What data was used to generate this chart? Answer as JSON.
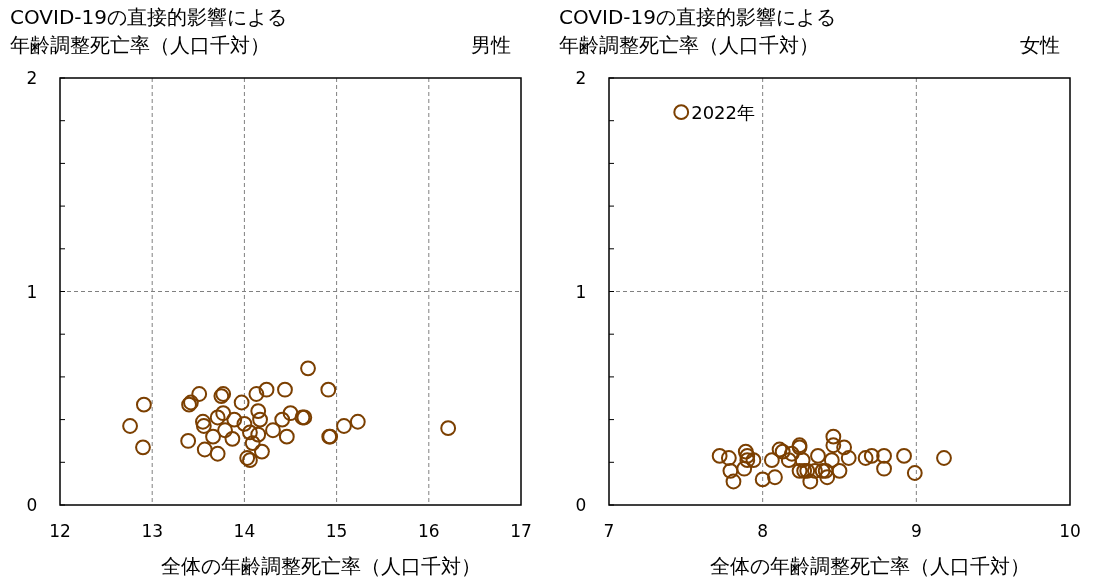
{
  "chart_data": [
    {
      "type": "scatter",
      "title": "男性",
      "ylabel": "COVID-19の直接的影響による年齢調整死亡率（人口千対）",
      "xlabel": "全体の年齢調整死亡率（人口千対）",
      "marker": "circle",
      "grid": true,
      "xlim": [
        12,
        17
      ],
      "xticks": [
        12,
        13,
        14,
        15,
        16,
        17
      ],
      "ylim": [
        0,
        2
      ],
      "yticks": [
        0,
        {
          "value": 0.2,
          "label": null
        },
        {
          "value": 0.4,
          "label": null
        },
        {
          "value": 0.6,
          "label": null
        },
        {
          "value": 0.8,
          "label": null
        },
        1,
        {
          "value": 1.2,
          "label": null
        },
        {
          "value": 1.4,
          "label": null
        },
        {
          "value": 1.6,
          "label": null
        },
        {
          "value": 1.8,
          "label": null
        },
        2
      ],
      "series": [
        {
          "color": "#7b3f00",
          "x": [
            14.69,
            12.91,
            12.76,
            12.9,
            13.4,
            13.42,
            13.51,
            13.75,
            13.77,
            13.97,
            14.13,
            14.24,
            14.44,
            14.91,
            13.39,
            13.55,
            13.56,
            13.66,
            13.57,
            13.71,
            13.71,
            13.77,
            13.79,
            13.89,
            13.87,
            14.0,
            14.06,
            14.15,
            14.15,
            14.17,
            14.09,
            14.03,
            14.06,
            14.19,
            14.31,
            14.46,
            14.41,
            14.5,
            14.63,
            14.65,
            14.92,
            14.93,
            15.08,
            15.23,
            16.21
          ],
          "values": [
            0.64,
            0.47,
            0.37,
            0.27,
            0.47,
            0.48,
            0.52,
            0.51,
            0.52,
            0.48,
            0.52,
            0.54,
            0.54,
            0.54,
            0.3,
            0.39,
            0.37,
            0.32,
            0.26,
            0.24,
            0.41,
            0.43,
            0.35,
            0.4,
            0.31,
            0.38,
            0.34,
            0.33,
            0.44,
            0.4,
            0.29,
            0.22,
            0.21,
            0.25,
            0.35,
            0.32,
            0.4,
            0.43,
            0.41,
            0.41,
            0.32,
            0.32,
            0.37,
            0.39,
            0.36
          ]
        }
      ]
    },
    {
      "type": "scatter",
      "title": "女性",
      "ylabel": "COVID-19の直接的影響による年齢調整死亡率（人口千対）",
      "xlabel": "全体の年齢調整死亡率（人口千対）",
      "marker": "circle",
      "grid": true,
      "xlim": [
        7,
        10
      ],
      "xticks": [
        7,
        8,
        9,
        10
      ],
      "ylim": [
        0,
        2
      ],
      "yticks": [
        0,
        {
          "value": 0.2,
          "label": null
        },
        {
          "value": 0.4,
          "label": null
        },
        {
          "value": 0.6,
          "label": null
        },
        {
          "value": 0.8,
          "label": null
        },
        1,
        {
          "value": 1.2,
          "label": null
        },
        {
          "value": 1.4,
          "label": null
        },
        {
          "value": 1.6,
          "label": null
        },
        {
          "value": 1.8,
          "label": null
        },
        2
      ],
      "annotations": [
        {
          "text": "2022年",
          "x": 7.47,
          "y": 1.84
        }
      ],
      "series": [
        {
          "color": "#7b3f00",
          "x": [
            7.47,
            7.72,
            7.78,
            7.79,
            7.81,
            7.89,
            7.9,
            7.9,
            7.94,
            7.88,
            8.0,
            8.08,
            8.06,
            8.11,
            8.13,
            8.17,
            8.19,
            8.24,
            8.24,
            8.26,
            8.24,
            8.27,
            8.29,
            8.31,
            8.36,
            8.34,
            8.39,
            8.41,
            8.42,
            8.45,
            8.46,
            8.46,
            8.5,
            8.53,
            8.56,
            8.67,
            8.71,
            8.79,
            8.79,
            8.92,
            8.99,
            9.18
          ],
          "values": [
            1.84,
            0.23,
            0.22,
            0.16,
            0.11,
            0.25,
            0.23,
            0.21,
            0.21,
            0.17,
            0.12,
            0.13,
            0.21,
            0.26,
            0.25,
            0.21,
            0.24,
            0.28,
            0.27,
            0.21,
            0.16,
            0.16,
            0.16,
            0.11,
            0.23,
            0.16,
            0.16,
            0.16,
            0.13,
            0.21,
            0.32,
            0.28,
            0.16,
            0.27,
            0.22,
            0.22,
            0.23,
            0.23,
            0.17,
            0.23,
            0.15,
            0.22
          ]
        }
      ]
    }
  ]
}
